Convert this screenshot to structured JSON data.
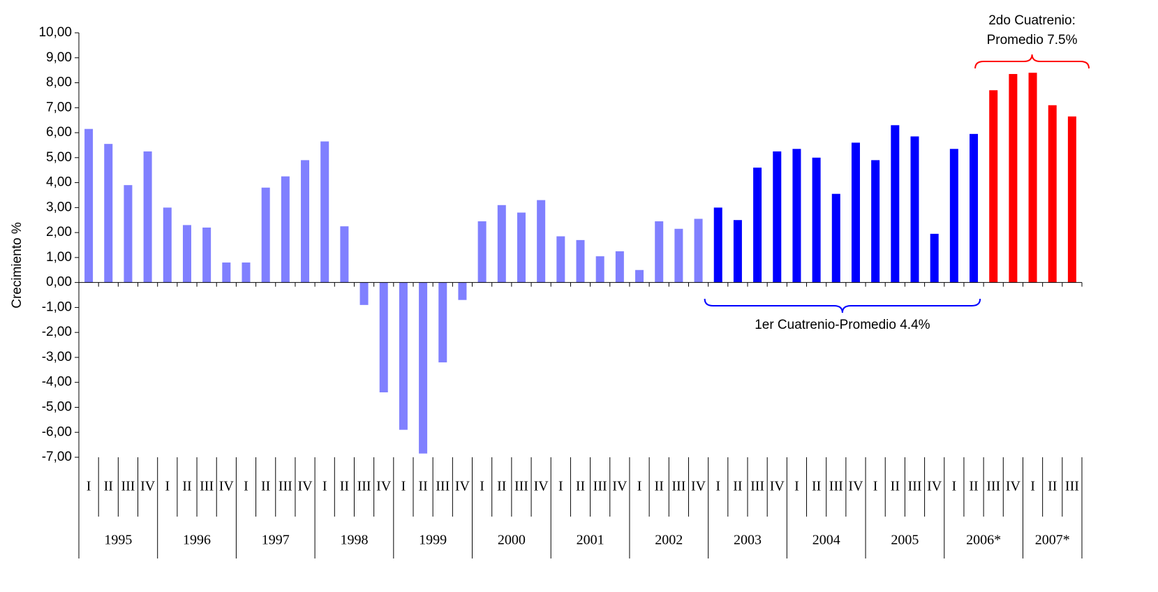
{
  "chart_data": {
    "type": "bar",
    "y_label": "Crecimiento %",
    "categories": [
      "I",
      "II",
      "III",
      "IV",
      "I",
      "II",
      "III",
      "IV",
      "I",
      "II",
      "III",
      "IV",
      "I",
      "II",
      "III",
      "IV",
      "I",
      "II",
      "III",
      "IV",
      "I",
      "II",
      "III",
      "IV",
      "I",
      "II",
      "III",
      "IV",
      "I",
      "II",
      "III",
      "IV",
      "I",
      "II",
      "III",
      "IV",
      "I",
      "II",
      "III",
      "IV",
      "I",
      "II",
      "III",
      "IV",
      "I",
      "II",
      "III",
      "IV",
      "I",
      "II",
      "III"
    ],
    "years": [
      "1995",
      "1996",
      "1997",
      "1998",
      "1999",
      "2000",
      "2001",
      "2002",
      "2003",
      "2004",
      "2005",
      "2006*",
      "2007*"
    ],
    "values": [
      6.15,
      5.55,
      3.9,
      5.25,
      3.0,
      2.3,
      2.2,
      0.8,
      0.8,
      3.8,
      4.25,
      4.9,
      5.65,
      2.25,
      -0.9,
      -4.4,
      -5.9,
      -6.85,
      -3.2,
      -0.7,
      2.45,
      3.1,
      2.8,
      3.3,
      1.85,
      1.7,
      1.05,
      1.25,
      0.5,
      2.45,
      2.15,
      2.55,
      3.0,
      2.5,
      4.6,
      5.25,
      5.35,
      5.0,
      3.55,
      5.6,
      4.9,
      6.3,
      5.85,
      1.95,
      5.35,
      5.95,
      7.7,
      8.35,
      8.4,
      7.1,
      6.65
    ],
    "colors": [
      "#8080ff",
      "#8080ff",
      "#8080ff",
      "#8080ff",
      "#8080ff",
      "#8080ff",
      "#8080ff",
      "#8080ff",
      "#8080ff",
      "#8080ff",
      "#8080ff",
      "#8080ff",
      "#8080ff",
      "#8080ff",
      "#8080ff",
      "#8080ff",
      "#8080ff",
      "#8080ff",
      "#8080ff",
      "#8080ff",
      "#8080ff",
      "#8080ff",
      "#8080ff",
      "#8080ff",
      "#8080ff",
      "#8080ff",
      "#8080ff",
      "#8080ff",
      "#8080ff",
      "#8080ff",
      "#8080ff",
      "#8080ff",
      "#0000ff",
      "#0000ff",
      "#0000ff",
      "#0000ff",
      "#0000ff",
      "#0000ff",
      "#0000ff",
      "#0000ff",
      "#0000ff",
      "#0000ff",
      "#0000ff",
      "#0000ff",
      "#0000ff",
      "#0000ff",
      "#ff0000",
      "#ff0000",
      "#ff0000",
      "#ff0000",
      "#ff0000"
    ],
    "ylim": [
      -7,
      10
    ],
    "yticks": [
      {
        "value": -7,
        "label": "-7,00"
      },
      {
        "value": -6,
        "label": "-6,00"
      },
      {
        "value": -5,
        "label": "-5,00"
      },
      {
        "value": -4,
        "label": "-4,00"
      },
      {
        "value": -3,
        "label": "-3,00"
      },
      {
        "value": -2,
        "label": "-2,00"
      },
      {
        "value": -1,
        "label": "-1,00"
      },
      {
        "value": 0,
        "label": "0,00"
      },
      {
        "value": 1,
        "label": "1,00"
      },
      {
        "value": 2,
        "label": "2,00"
      },
      {
        "value": 3,
        "label": "3,00"
      },
      {
        "value": 4,
        "label": "4,00"
      },
      {
        "value": 5,
        "label": "5,00"
      },
      {
        "value": 6,
        "label": "6,00"
      },
      {
        "value": 7,
        "label": "7,00"
      },
      {
        "value": 8,
        "label": "8,00"
      },
      {
        "value": 9,
        "label": "9,00"
      },
      {
        "value": 10,
        "label": "10,00"
      }
    ],
    "annotations": [
      {
        "lines": [
          "1er Cuatrenio-Promedio 4.4%"
        ],
        "color": "#0000ff"
      },
      {
        "lines": [
          "2do Cuatrenio:",
          "Promedio 7.5%"
        ],
        "color": "#ff0000"
      }
    ]
  }
}
